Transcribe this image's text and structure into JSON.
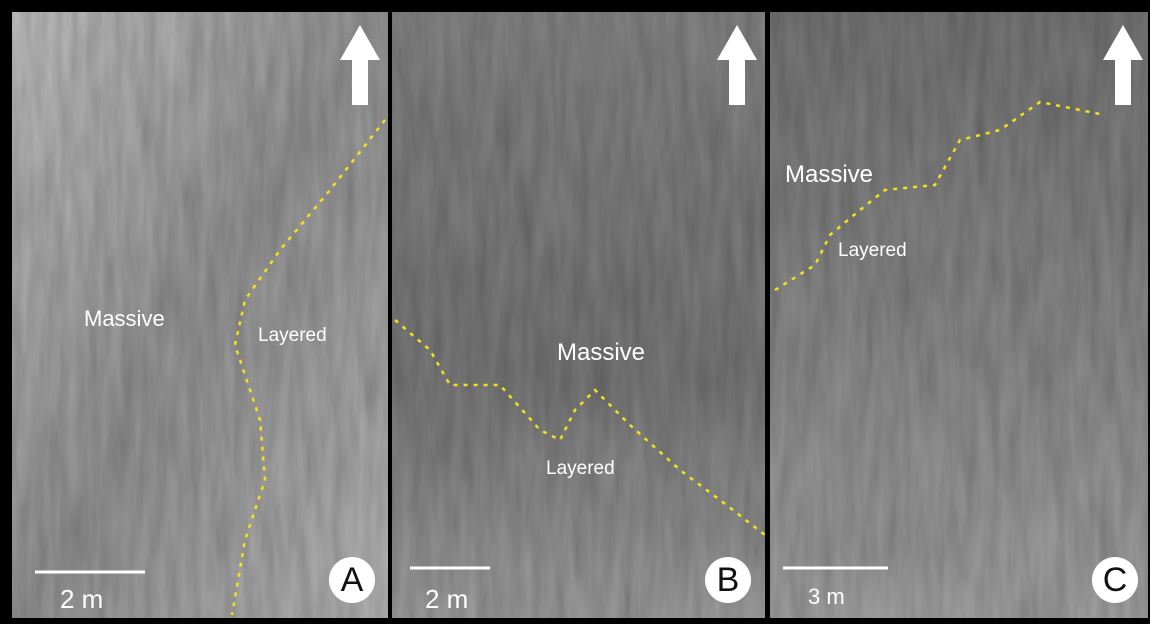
{
  "panels": [
    {
      "label": "A",
      "upper_unit": "Massive",
      "lower_unit": "Layered",
      "scale": "2 m"
    },
    {
      "label": "B",
      "upper_unit": "Massive",
      "lower_unit": "Layered",
      "scale": "2 m"
    },
    {
      "label": "C",
      "upper_unit": "Massive",
      "lower_unit": "Layered",
      "scale": "3 m"
    }
  ]
}
